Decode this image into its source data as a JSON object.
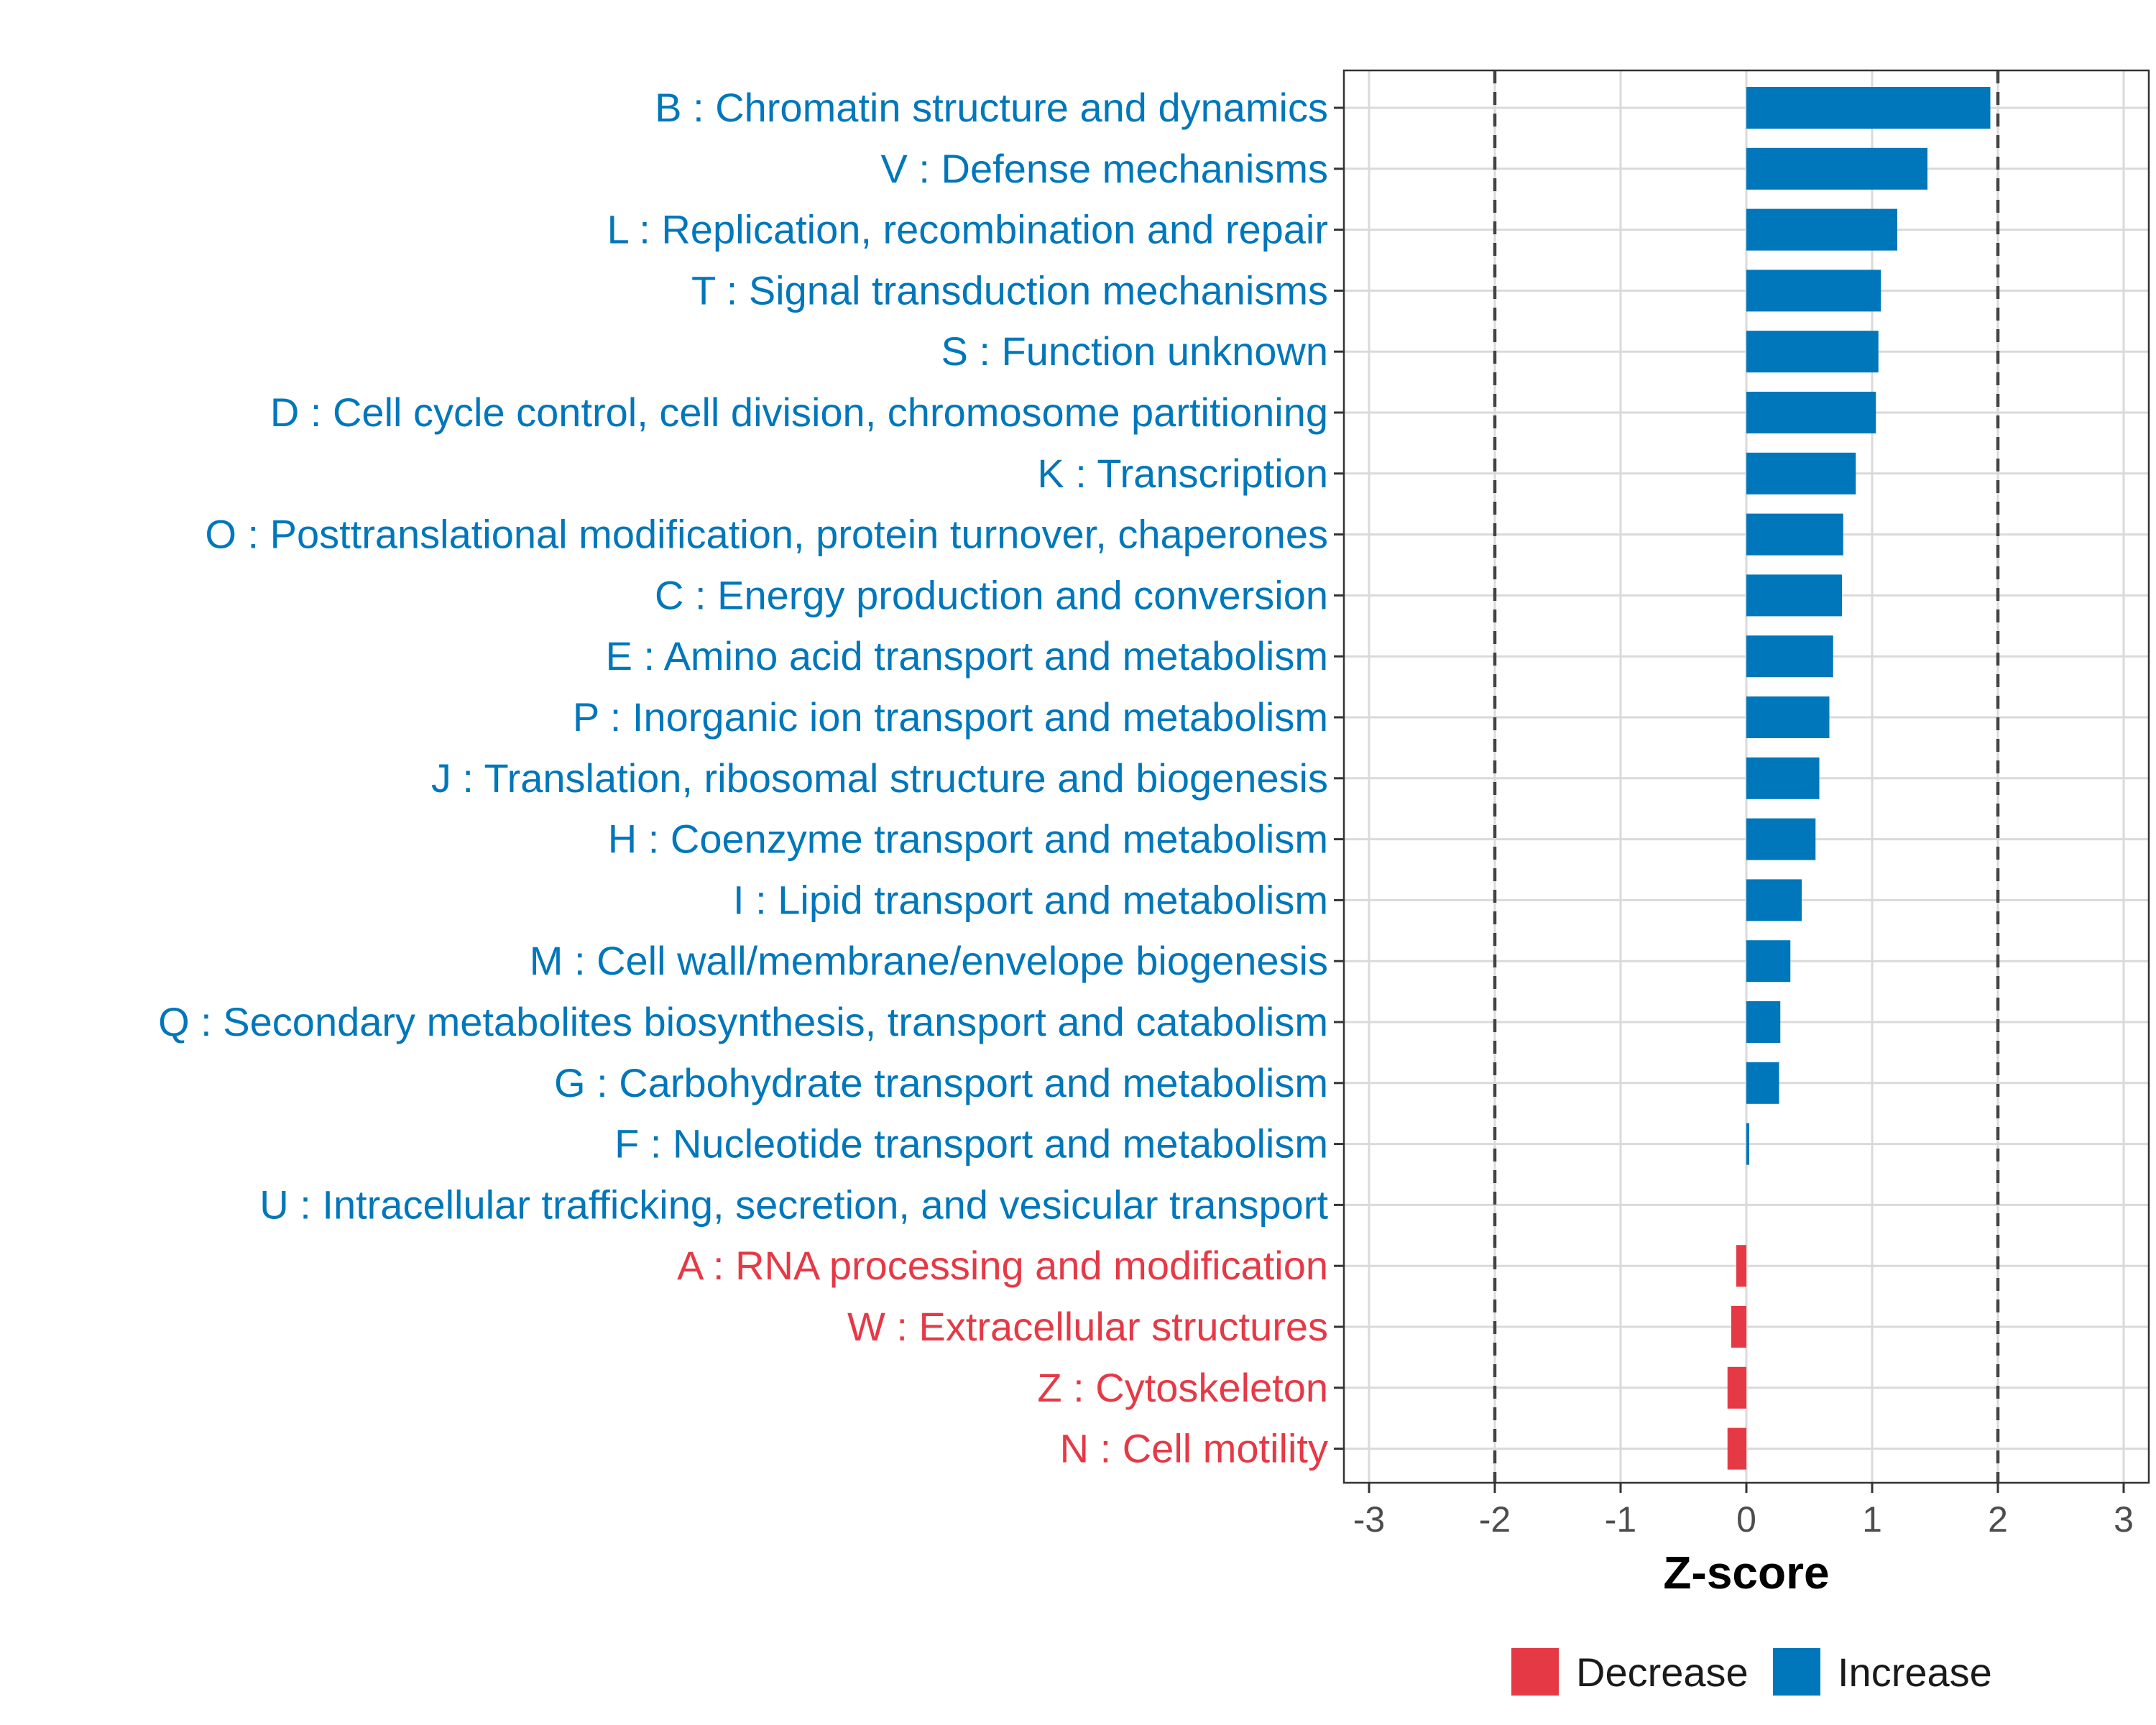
{
  "chart_data": {
    "type": "bar",
    "orientation": "horizontal",
    "xlabel": "Z-score",
    "xlim": [
      -3.2,
      3.2
    ],
    "xticks": [
      -3,
      -2,
      -1,
      0,
      1,
      2,
      3
    ],
    "xtick_labels": [
      "-3",
      "-2",
      "-1",
      "0",
      "1",
      "2",
      "3"
    ],
    "reference_lines": [
      -2,
      2
    ],
    "grid": true,
    "colors": {
      "Increase": "#0077bb",
      "Decrease": "#e63946"
    },
    "categories": [
      "B : Chromatin structure and dynamics",
      "V : Defense mechanisms",
      "L : Replication, recombination and repair",
      "T : Signal transduction mechanisms",
      "S : Function unknown",
      "D : Cell cycle control, cell division, chromosome partitioning",
      "K : Transcription",
      "O : Posttranslational modification, protein turnover, chaperones",
      "C : Energy production and conversion",
      "E : Amino acid transport and metabolism",
      "P : Inorganic ion transport and metabolism",
      "J : Translation, ribosomal structure and biogenesis",
      "H : Coenzyme transport and metabolism",
      "I : Lipid transport and metabolism",
      "M : Cell wall/membrane/envelope biogenesis",
      "Q : Secondary metabolites biosynthesis, transport and catabolism",
      "G : Carbohydrate transport and metabolism",
      "F : Nucleotide transport and metabolism",
      "U : Intracellular trafficking, secretion, and vesicular transport",
      "A : RNA processing and modification",
      "W : Extracellular structures",
      "Z : Cytoskeleton",
      "N : Cell motility"
    ],
    "values": [
      1.94,
      1.44,
      1.2,
      1.07,
      1.05,
      1.03,
      0.87,
      0.77,
      0.76,
      0.69,
      0.66,
      0.58,
      0.55,
      0.44,
      0.35,
      0.27,
      0.26,
      0.02,
      0.0,
      -0.08,
      -0.12,
      -0.15,
      -0.15
    ],
    "direction": [
      "Increase",
      "Increase",
      "Increase",
      "Increase",
      "Increase",
      "Increase",
      "Increase",
      "Increase",
      "Increase",
      "Increase",
      "Increase",
      "Increase",
      "Increase",
      "Increase",
      "Increase",
      "Increase",
      "Increase",
      "Increase",
      "Increase",
      "Decrease",
      "Decrease",
      "Decrease",
      "Decrease"
    ],
    "legend": [
      "Decrease",
      "Increase"
    ],
    "legend_position": "bottom"
  }
}
